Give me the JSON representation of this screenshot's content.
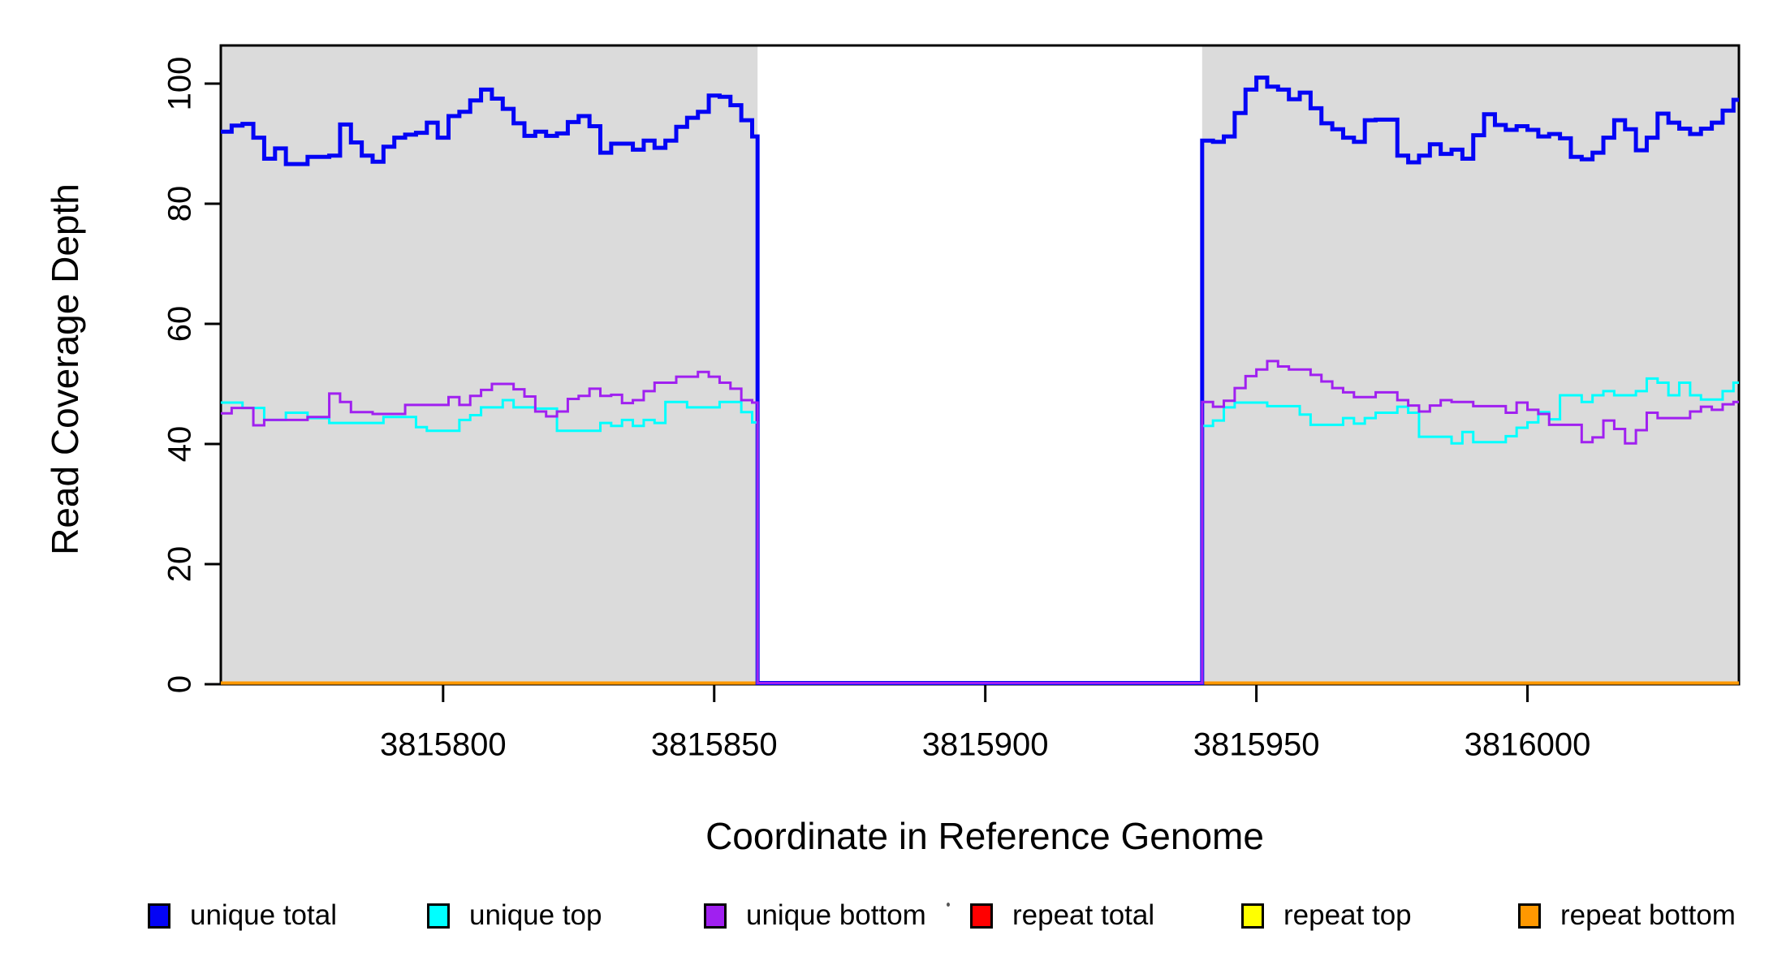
{
  "chart_data": {
    "type": "line",
    "subtype": "step-coverage-plot",
    "title": "",
    "xlabel": "Coordinate in Reference Genome",
    "ylabel": "Read Coverage Depth",
    "xlim": [
      3815759,
      3816039
    ],
    "ylim": [
      0,
      106
    ],
    "x_ticks": [
      "3815800",
      "3815850",
      "3815900",
      "3815950",
      "3816000"
    ],
    "x_tick_values": [
      3815800,
      3815850,
      3815900,
      3815950,
      3816000
    ],
    "y_ticks": [
      "0",
      "20",
      "40",
      "60",
      "80",
      "100"
    ],
    "y_tick_values": [
      0,
      20,
      40,
      60,
      80,
      100
    ],
    "grid": false,
    "plot_background": "#ffffff",
    "shaded_regions": [
      {
        "name": "unique-mappability-left",
        "start": 3815759,
        "end": 3815858,
        "color": "#DBDBDB"
      },
      {
        "name": "unique-mappability-right",
        "start": 3815940,
        "end": 3816039,
        "color": "#DBDBDB"
      }
    ],
    "gap_region": {
      "start": 3815858,
      "end": 3815940,
      "unique_value": 0
    },
    "series": [
      {
        "name": "repeat total",
        "color": "#FF0000",
        "width": 3,
        "constant": 0
      },
      {
        "name": "repeat top",
        "color": "#FFFF00",
        "width": 3,
        "constant": 0
      },
      {
        "name": "repeat bottom",
        "color": "#FF9800",
        "width": 4,
        "constant": 0
      },
      {
        "name": "unique total",
        "color": "#0404F5",
        "width": 5,
        "segments": [
          {
            "start": 3815759,
            "step": 2,
            "values": [
              92,
              93,
              93.3,
              91,
              87.5,
              89.2,
              86.6,
              86.6,
              87.8,
              87.8,
              88,
              93.2,
              90.2,
              88,
              87,
              89.5,
              91,
              91.5,
              91.8,
              93.5,
              91,
              94.6,
              95.3,
              97.2,
              99,
              97.5,
              95.8,
              93.4,
              91.3,
              92,
              91.3,
              91.7,
              93.6,
              94.6,
              92.9,
              88.5,
              90,
              90,
              89,
              90.5,
              89.3,
              90.5,
              92.8,
              94.3,
              95.3,
              98,
              97.8,
              96.4,
              93.9,
              91.2
            ]
          },
          {
            "start": 3815940,
            "step": 2,
            "values": [
              90.5,
              90.3,
              91.2,
              95.1,
              99,
              101,
              99.5,
              99,
              97.4,
              98.5,
              95.9,
              93.4,
              92.4,
              91,
              90.3,
              93.9,
              94,
              94,
              88,
              86.9,
              88,
              89.9,
              88.3,
              89,
              87.5,
              91.4,
              94.9,
              93.1,
              92.3,
              92.9,
              92.3,
              91.2,
              91.6,
              90.9,
              87.8,
              87.4,
              88.5,
              91,
              93.9,
              92.4,
              88.9,
              91,
              95,
              93.5,
              92.5,
              91.6,
              92.5,
              93.5,
              95.5,
              97.3
            ]
          }
        ]
      },
      {
        "name": "unique top",
        "color": "#00FFFF",
        "width": 3,
        "segments": [
          {
            "start": 3815759,
            "step": 2,
            "values": [
              46.9,
              46.9,
              46,
              46,
              44,
              44,
              45.2,
              45.2,
              44.3,
              44.3,
              43.5,
              43.5,
              43.5,
              43.5,
              43.5,
              44.5,
              44.5,
              44.5,
              42.8,
              42.2,
              42.2,
              42.2,
              44,
              44.8,
              46.1,
              46.1,
              47.3,
              46.1,
              46.1,
              45.9,
              45.9,
              42.2,
              42.2,
              42.2,
              42.2,
              43.5,
              43,
              44,
              43,
              44,
              43.5,
              47,
              47,
              46.1,
              46.1,
              46.1,
              47,
              47,
              45.3,
              43.6
            ]
          },
          {
            "start": 3815940,
            "step": 2,
            "values": [
              43,
              43.9,
              46.1,
              46.9,
              46.9,
              46.9,
              46.3,
              46.3,
              46.3,
              44.9,
              43.2,
              43.2,
              43.2,
              44.3,
              43.4,
              44.3,
              45.2,
              45.2,
              46.2,
              45.2,
              41.2,
              41.2,
              41.2,
              40.1,
              42,
              40.3,
              40.3,
              40.3,
              41.3,
              42.7,
              43.6,
              45.3,
              44.1,
              48.1,
              48.1,
              47,
              48.1,
              48.8,
              48.1,
              48.1,
              48.8,
              50.9,
              50.2,
              48.1,
              50.2,
              48.1,
              47.4,
              47.4,
              48.8,
              50.2
            ]
          }
        ]
      },
      {
        "name": "unique bottom",
        "color": "#A020F0",
        "width": 3,
        "segments": [
          {
            "start": 3815759,
            "step": 2,
            "values": [
              45.1,
              46,
              46,
              43.1,
              44,
              44,
              44,
              44,
              44.5,
              44.5,
              48.4,
              47,
              45.3,
              45.3,
              45,
              45,
              45,
              46.5,
              46.5,
              46.5,
              46.5,
              47.8,
              46.5,
              48,
              49,
              50,
              50,
              49.1,
              47.9,
              45.4,
              44.6,
              45.4,
              47.5,
              48,
              49.2,
              48,
              48.2,
              46.8,
              47.3,
              48.8,
              50.2,
              50.2,
              51.2,
              51.2,
              52,
              51.2,
              50.2,
              49.2,
              47.3,
              46.9
            ]
          },
          {
            "start": 3815940,
            "step": 2,
            "values": [
              47,
              46.2,
              47.2,
              49.3,
              51.3,
              52.4,
              53.8,
              52.9,
              52.4,
              52.4,
              51.5,
              50.4,
              49.3,
              48.6,
              47.8,
              47.8,
              48.6,
              48.6,
              47.3,
              46.4,
              45.4,
              46.4,
              47.3,
              47,
              47,
              46.3,
              46.3,
              46.3,
              45.2,
              46.9,
              45.7,
              45,
              43.2,
              43.2,
              43.2,
              40.3,
              41.1,
              43.9,
              42.5,
              40.1,
              42.3,
              45.2,
              44.3,
              44.3,
              44.3,
              45.4,
              46.2,
              45.7,
              46.6,
              47
            ]
          }
        ]
      }
    ],
    "legend": {
      "position": "bottom",
      "entries": [
        {
          "label": "unique total",
          "color": "#0404F5"
        },
        {
          "label": "unique top",
          "color": "#00FFFF"
        },
        {
          "label": "unique bottom",
          "color": "#A020F0"
        },
        {
          "label": "repeat total",
          "color": "#FF0000"
        },
        {
          "label": "repeat top",
          "color": "#FFFF00"
        },
        {
          "label": "repeat bottom",
          "color": "#FF9800"
        }
      ],
      "stray_mark": "."
    }
  }
}
